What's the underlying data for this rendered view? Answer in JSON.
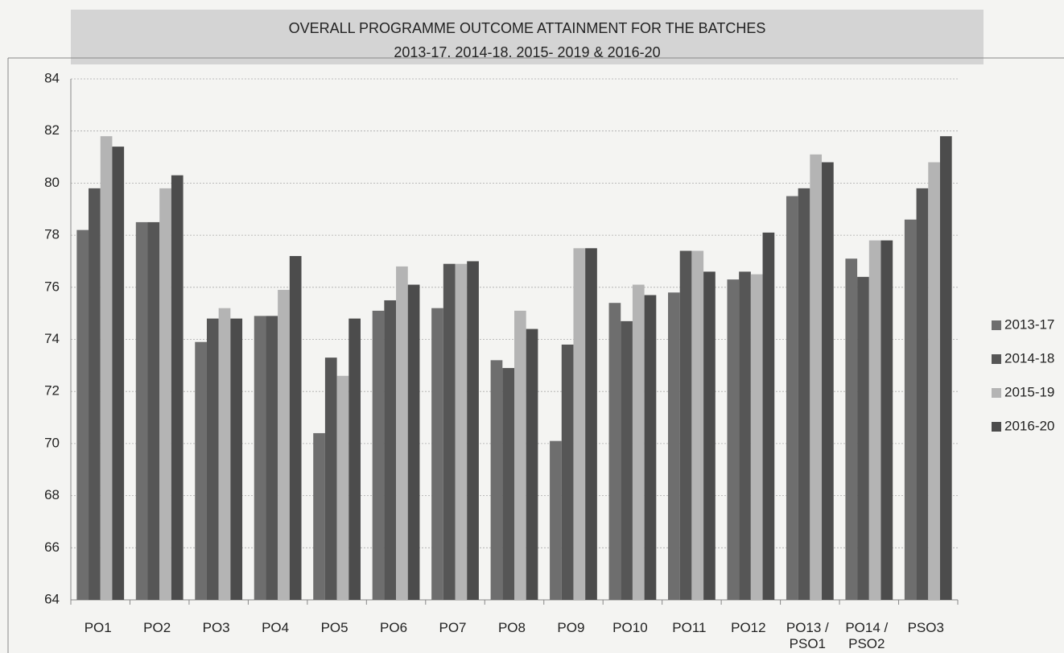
{
  "chart_data": {
    "type": "bar",
    "title": "OVERALL PROGRAMME OUTCOME ATTAINMENT FOR THE BATCHES",
    "subtitle": "2013-17. 2014-18. 2015- 2019 & 2016-20",
    "categories": [
      "PO1",
      "PO2",
      "PO3",
      "PO4",
      "PO5",
      "PO6",
      "PO7",
      "PO8",
      "PO9",
      "PO10",
      "PO11",
      "PO12",
      "PO13 / PSO1",
      "PO14 / PSO2",
      "PSO3"
    ],
    "series": [
      {
        "name": "2013-17",
        "color": "#6e6e6e",
        "values": [
          78.2,
          78.5,
          73.9,
          74.9,
          70.4,
          75.1,
          75.2,
          73.2,
          70.1,
          75.4,
          75.8,
          76.3,
          79.5,
          77.1,
          78.6
        ]
      },
      {
        "name": "2014-18",
        "color": "#565656",
        "values": [
          79.8,
          78.5,
          74.8,
          74.9,
          73.3,
          75.5,
          76.9,
          72.9,
          73.8,
          74.7,
          77.4,
          76.6,
          79.8,
          76.4,
          79.8
        ]
      },
      {
        "name": "2015-19",
        "color": "#b4b4b4",
        "values": [
          81.8,
          79.8,
          75.2,
          75.9,
          72.6,
          76.8,
          76.9,
          75.1,
          77.5,
          76.1,
          77.4,
          76.5,
          81.1,
          77.8,
          80.8
        ]
      },
      {
        "name": "2016-20",
        "color": "#4c4c4c",
        "values": [
          81.4,
          80.3,
          74.8,
          77.2,
          74.8,
          76.1,
          77.0,
          74.4,
          77.5,
          75.7,
          76.6,
          78.1,
          80.8,
          77.8,
          81.8
        ]
      }
    ],
    "ylim": [
      64,
      84
    ],
    "yticks": [
      64,
      66,
      68,
      70,
      72,
      74,
      76,
      78,
      80,
      82,
      84
    ],
    "grid": true,
    "legend": "right"
  }
}
